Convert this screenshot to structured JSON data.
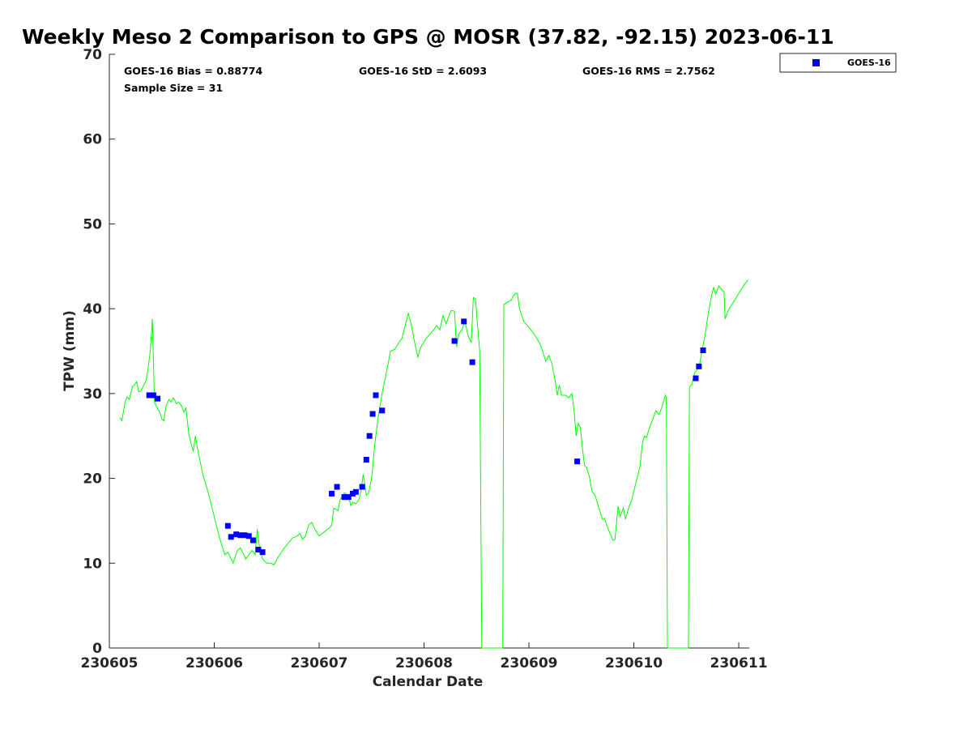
{
  "chart_data": {
    "type": "scatter",
    "title": "Weekly Meso 2 Comparison to GPS @ MOSR (37.82, -92.15) 2023-06-11",
    "xlabel": "Calendar Date",
    "ylabel": "TPW (mm)",
    "xlim": [
      0,
      6.1
    ],
    "ylim": [
      0,
      70
    ],
    "x_ticks": [
      {
        "label": "230605",
        "value": 0
      },
      {
        "label": "230606",
        "value": 1
      },
      {
        "label": "230607",
        "value": 2
      },
      {
        "label": "230608",
        "value": 3
      },
      {
        "label": "230609",
        "value": 4
      },
      {
        "label": "230610",
        "value": 5
      },
      {
        "label": "230611",
        "value": 6
      }
    ],
    "y_ticks": [
      0,
      10,
      20,
      30,
      40,
      50,
      60,
      70
    ],
    "grid": false,
    "legend": {
      "position": "top-right",
      "entries": [
        "GOES-16"
      ]
    },
    "stats": {
      "bias": "GOES-16 Bias = 0.88774",
      "std": "GOES-16 StD = 2.6093",
      "rms": "GOES-16 RMS = 2.7562",
      "sample": "Sample Size = 31"
    },
    "colors": {
      "gps_line": "#00ff00",
      "goes16": "#0000ff"
    },
    "series": [
      {
        "name": "GOES-16",
        "type": "scatter",
        "points": [
          [
            0.38,
            29.8
          ],
          [
            0.42,
            29.8
          ],
          [
            0.46,
            29.4
          ],
          [
            1.13,
            14.4
          ],
          [
            1.16,
            13.1
          ],
          [
            1.21,
            13.4
          ],
          [
            1.25,
            13.3
          ],
          [
            1.29,
            13.3
          ],
          [
            1.33,
            13.2
          ],
          [
            1.37,
            12.7
          ],
          [
            1.42,
            11.6
          ],
          [
            1.46,
            11.3
          ],
          [
            2.12,
            18.2
          ],
          [
            2.17,
            19.0
          ],
          [
            2.24,
            17.8
          ],
          [
            2.28,
            17.8
          ],
          [
            2.32,
            18.2
          ],
          [
            2.35,
            18.4
          ],
          [
            2.41,
            19.0
          ],
          [
            2.45,
            22.2
          ],
          [
            2.48,
            25.0
          ],
          [
            2.51,
            27.6
          ],
          [
            2.54,
            29.8
          ],
          [
            2.6,
            28.0
          ],
          [
            3.29,
            36.2
          ],
          [
            3.38,
            38.5
          ],
          [
            3.46,
            33.7
          ],
          [
            4.46,
            22.0
          ],
          [
            5.59,
            31.8
          ],
          [
            5.62,
            33.2
          ],
          [
            5.66,
            35.1
          ]
        ]
      },
      {
        "type": "line",
        "points": [
          [
            0.1,
            27.2
          ],
          [
            0.12,
            26.8
          ],
          [
            0.15,
            29.0
          ],
          [
            0.17,
            29.6
          ],
          [
            0.19,
            29.3
          ],
          [
            0.22,
            30.8
          ],
          [
            0.25,
            31.2
          ],
          [
            0.26,
            31.4
          ],
          [
            0.28,
            30.2
          ],
          [
            0.3,
            30.3
          ],
          [
            0.32,
            30.8
          ],
          [
            0.35,
            31.5
          ],
          [
            0.37,
            33.0
          ],
          [
            0.39,
            35.0
          ],
          [
            0.41,
            38.8
          ],
          [
            0.43,
            29.0
          ],
          [
            0.46,
            28.2
          ],
          [
            0.48,
            27.8
          ],
          [
            0.5,
            27.0
          ],
          [
            0.52,
            26.8
          ],
          [
            0.54,
            28.5
          ],
          [
            0.57,
            29.3
          ],
          [
            0.59,
            29.0
          ],
          [
            0.61,
            29.5
          ],
          [
            0.64,
            28.8
          ],
          [
            0.66,
            29.0
          ],
          [
            0.69,
            28.5
          ],
          [
            0.71,
            27.8
          ],
          [
            0.73,
            28.3
          ],
          [
            0.76,
            25.0
          ],
          [
            0.8,
            23.2
          ],
          [
            0.82,
            25.0
          ],
          [
            0.84,
            23.5
          ],
          [
            0.89,
            20.5
          ],
          [
            0.95,
            18.0
          ],
          [
            1.0,
            15.5
          ],
          [
            1.05,
            13.0
          ],
          [
            1.1,
            11.0
          ],
          [
            1.13,
            11.3
          ],
          [
            1.18,
            10.0
          ],
          [
            1.22,
            11.5
          ],
          [
            1.25,
            11.8
          ],
          [
            1.3,
            10.5
          ],
          [
            1.33,
            11.0
          ],
          [
            1.36,
            11.5
          ],
          [
            1.39,
            11.0
          ],
          [
            1.41,
            14.0
          ],
          [
            1.43,
            12.0
          ],
          [
            1.46,
            10.5
          ],
          [
            1.5,
            10.0
          ],
          [
            1.54,
            10.0
          ],
          [
            1.57,
            9.8
          ],
          [
            1.6,
            10.5
          ],
          [
            1.65,
            11.5
          ],
          [
            1.7,
            12.3
          ],
          [
            1.75,
            13.0
          ],
          [
            1.79,
            13.2
          ],
          [
            1.82,
            13.5
          ],
          [
            1.84,
            12.8
          ],
          [
            1.87,
            13.2
          ],
          [
            1.9,
            14.5
          ],
          [
            1.93,
            14.8
          ],
          [
            1.96,
            14.0
          ],
          [
            2.0,
            13.2
          ],
          [
            2.05,
            13.7
          ],
          [
            2.1,
            14.2
          ],
          [
            2.12,
            14.5
          ],
          [
            2.14,
            16.5
          ],
          [
            2.18,
            16.2
          ],
          [
            2.2,
            17.5
          ],
          [
            2.24,
            18.3
          ],
          [
            2.28,
            18.0
          ],
          [
            2.3,
            16.8
          ],
          [
            2.32,
            17.2
          ],
          [
            2.35,
            17.0
          ],
          [
            2.38,
            17.5
          ],
          [
            2.4,
            18.5
          ],
          [
            2.42,
            20.5
          ],
          [
            2.45,
            18.0
          ],
          [
            2.47,
            18.2
          ],
          [
            2.5,
            20.0
          ],
          [
            2.53,
            24.0
          ],
          [
            2.56,
            27.0
          ],
          [
            2.6,
            30.0
          ],
          [
            2.65,
            33.0
          ],
          [
            2.68,
            35.0
          ],
          [
            2.72,
            35.2
          ],
          [
            2.76,
            36.0
          ],
          [
            2.79,
            36.5
          ],
          [
            2.82,
            38.0
          ],
          [
            2.85,
            39.5
          ],
          [
            2.88,
            38.0
          ],
          [
            2.91,
            36.0
          ],
          [
            2.94,
            34.3
          ],
          [
            2.97,
            35.5
          ],
          [
            3.02,
            36.5
          ],
          [
            3.07,
            37.2
          ],
          [
            3.12,
            38.0
          ],
          [
            3.15,
            37.5
          ],
          [
            3.18,
            39.2
          ],
          [
            3.21,
            38.2
          ],
          [
            3.24,
            39.3
          ],
          [
            3.26,
            39.8
          ],
          [
            3.29,
            39.7
          ],
          [
            3.31,
            35.5
          ],
          [
            3.33,
            37.0
          ],
          [
            3.36,
            37.5
          ],
          [
            3.39,
            38.5
          ],
          [
            3.42,
            36.8
          ],
          [
            3.45,
            36.0
          ],
          [
            3.47,
            41.3
          ],
          [
            3.49,
            41.2
          ],
          [
            3.51,
            38.0
          ],
          [
            3.53,
            35.0
          ],
          [
            3.55,
            0
          ],
          [
            3.75,
            0
          ],
          [
            3.76,
            40.5
          ],
          [
            3.8,
            40.8
          ],
          [
            3.83,
            41.0
          ],
          [
            3.85,
            41.5
          ],
          [
            3.87,
            41.8
          ],
          [
            3.89,
            41.8
          ],
          [
            3.91,
            40.0
          ],
          [
            3.95,
            38.5
          ],
          [
            4.0,
            37.8
          ],
          [
            4.05,
            37.0
          ],
          [
            4.1,
            36.0
          ],
          [
            4.13,
            35.0
          ],
          [
            4.16,
            33.8
          ],
          [
            4.19,
            34.5
          ],
          [
            4.22,
            33.5
          ],
          [
            4.25,
            31.5
          ],
          [
            4.27,
            29.8
          ],
          [
            4.29,
            31.0
          ],
          [
            4.31,
            29.8
          ],
          [
            4.35,
            29.8
          ],
          [
            4.38,
            29.5
          ],
          [
            4.41,
            30.0
          ],
          [
            4.43,
            28.0
          ],
          [
            4.45,
            25.0
          ],
          [
            4.47,
            26.5
          ],
          [
            4.49,
            26.0
          ],
          [
            4.51,
            23.5
          ],
          [
            4.53,
            21.5
          ],
          [
            4.55,
            21.3
          ],
          [
            4.58,
            20.0
          ],
          [
            4.6,
            18.5
          ],
          [
            4.63,
            18.0
          ],
          [
            4.65,
            17.2
          ],
          [
            4.68,
            16.0
          ],
          [
            4.7,
            15.2
          ],
          [
            4.72,
            15.3
          ],
          [
            4.75,
            14.2
          ],
          [
            4.78,
            13.3
          ],
          [
            4.8,
            12.7
          ],
          [
            4.82,
            12.8
          ],
          [
            4.85,
            16.7
          ],
          [
            4.87,
            15.5
          ],
          [
            4.9,
            16.5
          ],
          [
            4.92,
            15.2
          ],
          [
            4.95,
            16.5
          ],
          [
            4.98,
            17.5
          ],
          [
            5.02,
            19.5
          ],
          [
            5.06,
            21.5
          ],
          [
            5.08,
            24.0
          ],
          [
            5.1,
            25.0
          ],
          [
            5.12,
            24.8
          ],
          [
            5.15,
            26.0
          ],
          [
            5.18,
            27.0
          ],
          [
            5.21,
            28.0
          ],
          [
            5.24,
            27.5
          ],
          [
            5.27,
            28.5
          ],
          [
            5.3,
            29.8
          ],
          [
            5.31,
            29.5
          ],
          [
            5.32,
            0
          ],
          [
            5.52,
            0
          ],
          [
            5.53,
            30.8
          ],
          [
            5.55,
            31.0
          ],
          [
            5.58,
            32.5
          ],
          [
            5.62,
            33.0
          ],
          [
            5.65,
            35.0
          ],
          [
            5.68,
            37.0
          ],
          [
            5.71,
            39.5
          ],
          [
            5.74,
            41.5
          ],
          [
            5.76,
            42.5
          ],
          [
            5.78,
            41.7
          ],
          [
            5.81,
            42.7
          ],
          [
            5.84,
            42.2
          ],
          [
            5.86,
            42.0
          ],
          [
            5.87,
            38.8
          ],
          [
            5.9,
            39.8
          ],
          [
            5.95,
            40.8
          ],
          [
            6.0,
            41.8
          ],
          [
            6.05,
            42.8
          ],
          [
            6.09,
            43.4
          ]
        ]
      }
    ]
  }
}
